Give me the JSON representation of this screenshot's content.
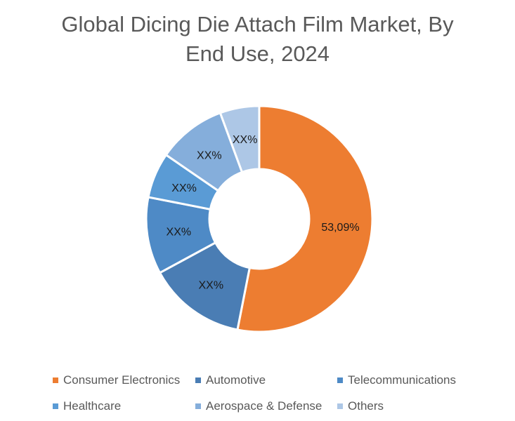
{
  "title_line1": "Global Dicing Die Attach Film Market, By",
  "title_line2": "End Use, 2024",
  "chart_data": {
    "type": "pie",
    "variant": "donut",
    "title": "Global Dicing Die Attach Film Market, By End Use, 2024",
    "categories": [
      "Consumer Electronics",
      "Automotive",
      "Telecommunications",
      "Healthcare",
      "Aerospace & Defense",
      "Others"
    ],
    "values": [
      53.09,
      14.0,
      11.0,
      6.5,
      9.8,
      5.61
    ],
    "labels": [
      "53,09%",
      "XX%",
      "XX%",
      "XX%",
      "XX%",
      "XX%"
    ],
    "colors": [
      "#ED7D31",
      "#4A7DB4",
      "#4E8AC6",
      "#5A9BD5",
      "#85AEDB",
      "#ADC7E6"
    ],
    "legend_position": "bottom",
    "start_angle": 0,
    "direction": "clockwise"
  },
  "legend": {
    "items": [
      {
        "label": "Consumer Electronics",
        "color": "#ED7D31"
      },
      {
        "label": "Automotive",
        "color": "#4A7DB4"
      },
      {
        "label": "Telecommunications",
        "color": "#4E8AC6"
      },
      {
        "label": "Healthcare",
        "color": "#5A9BD5"
      },
      {
        "label": "Aerospace & Defense",
        "color": "#85AEDB"
      },
      {
        "label": "Others",
        "color": "#ADC7E6"
      }
    ]
  }
}
